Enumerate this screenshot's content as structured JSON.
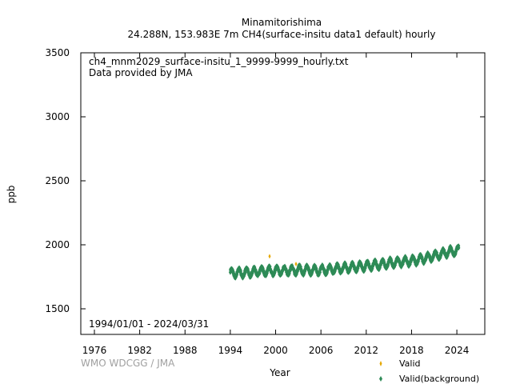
{
  "chart_data": {
    "type": "scatter",
    "title": "Minamitorishima",
    "subtitle": "24.288N, 153.983E 7m    CH4(surface-insitu data1 default) hourly",
    "xlabel": "Year",
    "ylabel": "ppb",
    "xlim": [
      1974.2,
      2027.7
    ],
    "ylim": [
      1300,
      3500
    ],
    "x_ticks": [
      "1976",
      "1982",
      "1988",
      "1994",
      "2000",
      "2006",
      "2012",
      "2018",
      "2024"
    ],
    "y_ticks": [
      "1500",
      "2000",
      "2500",
      "3000",
      "3500"
    ],
    "grid": false,
    "legend_position": "bottom-right",
    "annotations": {
      "filename": "ch4_mnm2029_surface-insitu_1_9999-9999_hourly.txt",
      "provider": "Data provided by JMA",
      "period": "1994/01/01 - 2024/03/31",
      "credit": "WMO WDCGG / JMA"
    },
    "series": [
      {
        "name": "Valid",
        "color": "#e6a800",
        "marker": "diamond-small",
        "points": [
          [
            1999.2,
            1910
          ],
          [
            2002.7,
            1850
          ]
        ]
      },
      {
        "name": "Valid(background)",
        "color": "#2e8b57",
        "marker": "diamond",
        "annual_mean": [
          {
            "x": 1994,
            "y": 1778
          },
          {
            "x": 1995,
            "y": 1780
          },
          {
            "x": 1996,
            "y": 1782
          },
          {
            "x": 1997,
            "y": 1786
          },
          {
            "x": 1998,
            "y": 1792
          },
          {
            "x": 1999,
            "y": 1795
          },
          {
            "x": 2000,
            "y": 1797
          },
          {
            "x": 2001,
            "y": 1798
          },
          {
            "x": 2002,
            "y": 1800
          },
          {
            "x": 2003,
            "y": 1803
          },
          {
            "x": 2004,
            "y": 1803
          },
          {
            "x": 2005,
            "y": 1802
          },
          {
            "x": 2006,
            "y": 1802
          },
          {
            "x": 2007,
            "y": 1806
          },
          {
            "x": 2008,
            "y": 1812
          },
          {
            "x": 2009,
            "y": 1818
          },
          {
            "x": 2010,
            "y": 1823
          },
          {
            "x": 2011,
            "y": 1828
          },
          {
            "x": 2012,
            "y": 1834
          },
          {
            "x": 2013,
            "y": 1840
          },
          {
            "x": 2014,
            "y": 1848
          },
          {
            "x": 2015,
            "y": 1856
          },
          {
            "x": 2016,
            "y": 1862
          },
          {
            "x": 2017,
            "y": 1868
          },
          {
            "x": 2018,
            "y": 1875
          },
          {
            "x": 2019,
            "y": 1885
          },
          {
            "x": 2020,
            "y": 1897
          },
          {
            "x": 2021,
            "y": 1913
          },
          {
            "x": 2022,
            "y": 1930
          },
          {
            "x": 2023,
            "y": 1945
          },
          {
            "x": 2024,
            "y": 1955
          }
        ],
        "seasonal_amplitude": 30,
        "spread": 12
      }
    ]
  }
}
